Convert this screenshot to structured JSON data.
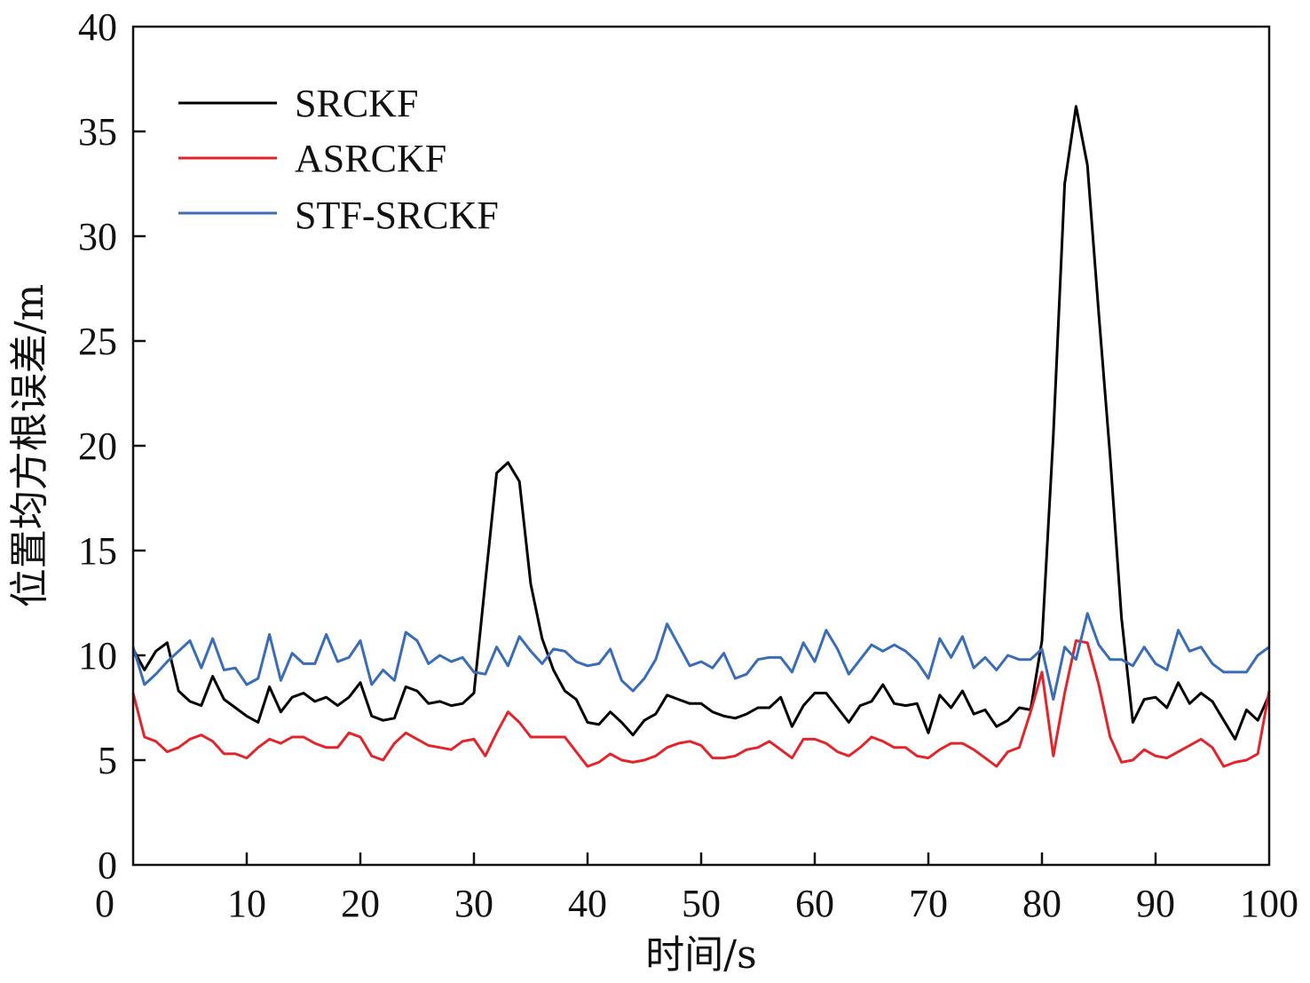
{
  "chart_data": {
    "type": "line",
    "xlabel": "时间/s",
    "ylabel": "位置均方根误差/m",
    "xlim": [
      0,
      100
    ],
    "ylim": [
      0,
      40
    ],
    "xticks": [
      0,
      10,
      20,
      30,
      40,
      50,
      60,
      70,
      80,
      90,
      100
    ],
    "yticks": [
      0,
      5,
      10,
      15,
      20,
      25,
      30,
      35,
      40
    ],
    "xtick_labels": [
      "0",
      "10",
      "20",
      "30",
      "40",
      "50",
      "60",
      "70",
      "80",
      "90",
      "100"
    ],
    "ytick_labels": [
      "0",
      "5",
      "10",
      "15",
      "20",
      "25",
      "30",
      "35",
      "40"
    ],
    "grid": false,
    "legend_position": "top-left",
    "x": [
      0,
      1,
      2,
      3,
      4,
      5,
      6,
      7,
      8,
      9,
      10,
      11,
      12,
      13,
      14,
      15,
      16,
      17,
      18,
      19,
      20,
      21,
      22,
      23,
      24,
      25,
      26,
      27,
      28,
      29,
      30,
      31,
      32,
      33,
      34,
      35,
      36,
      37,
      38,
      39,
      40,
      41,
      42,
      43,
      44,
      45,
      46,
      47,
      48,
      49,
      50,
      51,
      52,
      53,
      54,
      55,
      56,
      57,
      58,
      59,
      60,
      61,
      62,
      63,
      64,
      65,
      66,
      67,
      68,
      69,
      70,
      71,
      72,
      73,
      74,
      75,
      76,
      77,
      78,
      79,
      80,
      81,
      82,
      83,
      84,
      85,
      86,
      87,
      88,
      89,
      90,
      91,
      92,
      93,
      94,
      95,
      96,
      97,
      98,
      99,
      100
    ],
    "series": [
      {
        "name": "SRCKF",
        "color": "#000000",
        "values": [
          10.3,
          9.3,
          10.2,
          10.6,
          8.3,
          7.8,
          7.6,
          9.0,
          7.9,
          7.5,
          7.1,
          6.8,
          8.5,
          7.3,
          8.0,
          8.2,
          7.8,
          8.0,
          7.6,
          8.0,
          8.7,
          7.1,
          6.9,
          7.0,
          8.5,
          8.3,
          7.7,
          7.8,
          7.6,
          7.7,
          8.2,
          13.5,
          18.7,
          19.2,
          18.3,
          13.4,
          10.8,
          9.3,
          8.3,
          7.9,
          6.8,
          6.7,
          7.3,
          6.8,
          6.2,
          6.9,
          7.2,
          8.1,
          7.9,
          7.7,
          7.7,
          7.3,
          7.1,
          7.0,
          7.2,
          7.5,
          7.5,
          8.0,
          6.6,
          7.6,
          8.2,
          8.2,
          7.5,
          6.8,
          7.6,
          7.8,
          8.6,
          7.7,
          7.6,
          7.7,
          6.3,
          8.1,
          7.5,
          8.3,
          7.2,
          7.4,
          6.6,
          6.9,
          7.5,
          7.4,
          10.7,
          20.5,
          32.5,
          36.2,
          33.4,
          26.3,
          19.5,
          11.8,
          6.8,
          7.9,
          8.0,
          7.5,
          8.7,
          7.7,
          8.2,
          7.8,
          6.9,
          6.0,
          7.4,
          6.9,
          8.1
        ]
      },
      {
        "name": "ASRCKF",
        "color": "#e3242b",
        "values": [
          8.2,
          6.1,
          5.9,
          5.4,
          5.6,
          6.0,
          6.2,
          5.9,
          5.3,
          5.3,
          5.1,
          5.6,
          6.0,
          5.8,
          6.1,
          6.1,
          5.8,
          5.6,
          5.6,
          6.3,
          6.1,
          5.2,
          5.0,
          5.8,
          6.3,
          6.0,
          5.7,
          5.6,
          5.5,
          5.9,
          6.0,
          5.2,
          6.3,
          7.3,
          6.8,
          6.1,
          6.1,
          6.1,
          6.1,
          5.4,
          4.7,
          4.9,
          5.3,
          5.0,
          4.9,
          5.0,
          5.2,
          5.6,
          5.8,
          5.9,
          5.7,
          5.1,
          5.1,
          5.2,
          5.5,
          5.6,
          5.9,
          5.5,
          5.1,
          6.0,
          6.0,
          5.8,
          5.4,
          5.2,
          5.6,
          6.1,
          5.9,
          5.6,
          5.6,
          5.2,
          5.1,
          5.5,
          5.8,
          5.8,
          5.5,
          5.1,
          4.7,
          5.4,
          5.6,
          7.3,
          9.2,
          5.2,
          8.2,
          10.7,
          10.6,
          8.6,
          6.1,
          4.9,
          5.0,
          5.5,
          5.2,
          5.1,
          5.4,
          5.7,
          6.0,
          5.6,
          4.7,
          4.9,
          5.0,
          5.3,
          8.3
        ]
      },
      {
        "name": "STF-SRCKF",
        "color": "#3a6db5",
        "values": [
          10.4,
          8.6,
          9.1,
          9.7,
          10.2,
          10.7,
          9.4,
          10.8,
          9.3,
          9.4,
          8.6,
          8.9,
          11.0,
          8.8,
          10.1,
          9.6,
          9.6,
          11.0,
          9.7,
          9.9,
          10.7,
          8.6,
          9.3,
          8.8,
          11.1,
          10.7,
          9.6,
          10.0,
          9.7,
          9.9,
          9.2,
          9.1,
          10.4,
          9.5,
          10.9,
          10.2,
          9.6,
          10.3,
          10.2,
          9.7,
          9.5,
          9.6,
          10.3,
          8.8,
          8.3,
          8.9,
          9.8,
          11.5,
          10.5,
          9.5,
          9.7,
          9.4,
          10.1,
          8.9,
          9.1,
          9.8,
          9.9,
          9.9,
          9.2,
          10.6,
          9.7,
          11.2,
          10.3,
          9.1,
          9.8,
          10.5,
          10.2,
          10.5,
          10.2,
          9.7,
          8.9,
          10.8,
          9.9,
          10.9,
          9.4,
          9.9,
          9.3,
          10.0,
          9.8,
          9.8,
          10.3,
          7.9,
          10.4,
          9.8,
          12.0,
          10.5,
          9.8,
          9.8,
          9.5,
          10.4,
          9.6,
          9.3,
          11.2,
          10.2,
          10.4,
          9.6,
          9.2,
          9.2,
          9.2,
          10.0,
          10.4
        ]
      }
    ]
  }
}
